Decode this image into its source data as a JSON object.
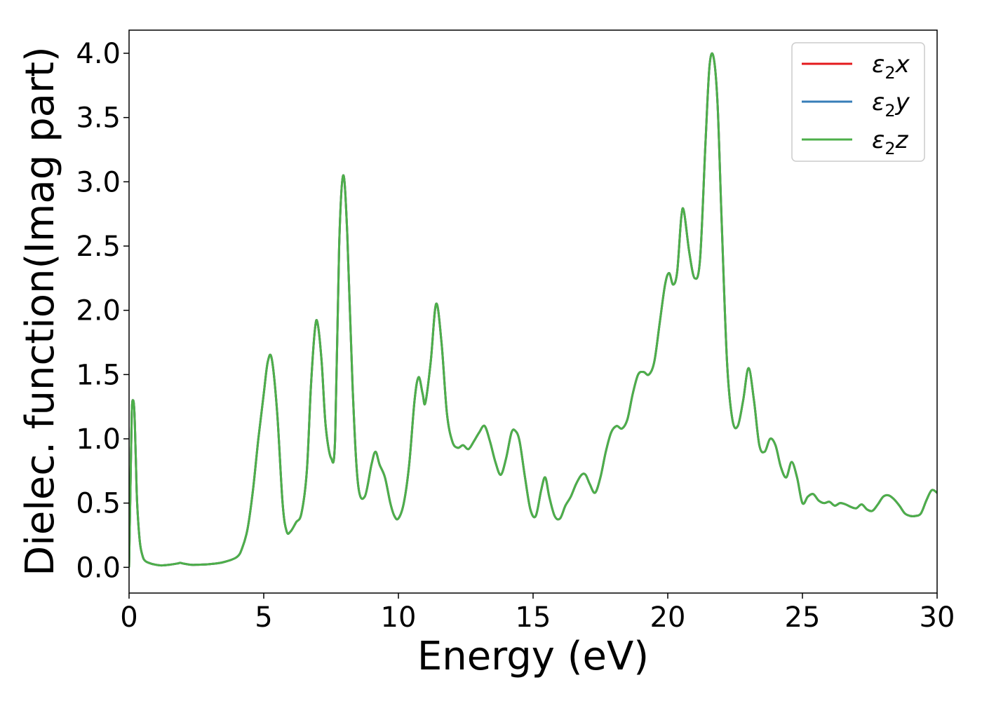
{
  "chart_data": {
    "type": "line",
    "xlabel": "Energy (eV)",
    "ylabel": "Dielec. function(Imag part)",
    "xlim": [
      0,
      30
    ],
    "ylim": [
      -0.2,
      4.18
    ],
    "xticks": [
      0,
      5,
      10,
      15,
      20,
      25,
      30
    ],
    "xtick_labels": [
      "0",
      "5",
      "10",
      "15",
      "20",
      "25",
      "30"
    ],
    "yticks": [
      0.0,
      0.5,
      1.0,
      1.5,
      2.0,
      2.5,
      3.0,
      3.5,
      4.0
    ],
    "ytick_labels": [
      "0.0",
      "0.5",
      "1.0",
      "1.5",
      "2.0",
      "2.5",
      "3.0",
      "3.5",
      "4.0"
    ],
    "grid": false,
    "legend_position": "top-right",
    "x": [
      0,
      0.05,
      0.1,
      0.15,
      0.2,
      0.25,
      0.3,
      0.4,
      0.5,
      0.6,
      0.8,
      1.0,
      1.2,
      1.5,
      1.8,
      1.9,
      2.0,
      2.3,
      2.5,
      3.0,
      3.5,
      4.0,
      4.2,
      4.4,
      4.6,
      4.8,
      5.0,
      5.15,
      5.3,
      5.5,
      5.7,
      5.85,
      6.0,
      6.2,
      6.4,
      6.6,
      6.75,
      6.9,
      7.0,
      7.15,
      7.3,
      7.5,
      7.65,
      7.8,
      7.95,
      8.1,
      8.3,
      8.5,
      8.75,
      9.0,
      9.15,
      9.3,
      9.5,
      9.7,
      9.85,
      10.0,
      10.2,
      10.4,
      10.6,
      10.75,
      10.9,
      11.0,
      11.2,
      11.4,
      11.6,
      11.8,
      12.0,
      12.2,
      12.4,
      12.6,
      12.8,
      13.0,
      13.2,
      13.4,
      13.6,
      13.8,
      14.0,
      14.2,
      14.35,
      14.5,
      14.7,
      14.9,
      15.1,
      15.3,
      15.45,
      15.6,
      15.8,
      16.0,
      16.2,
      16.4,
      16.6,
      16.8,
      16.95,
      17.1,
      17.3,
      17.5,
      17.7,
      17.9,
      18.1,
      18.3,
      18.5,
      18.7,
      18.9,
      19.1,
      19.3,
      19.5,
      19.7,
      19.9,
      20.05,
      20.2,
      20.35,
      20.5,
      20.6,
      20.8,
      21.0,
      21.2,
      21.4,
      21.55,
      21.7,
      21.85,
      22.0,
      22.2,
      22.4,
      22.6,
      22.8,
      23.0,
      23.2,
      23.4,
      23.6,
      23.8,
      24.0,
      24.2,
      24.4,
      24.6,
      24.8,
      25.0,
      25.2,
      25.4,
      25.6,
      25.8,
      26.0,
      26.2,
      26.4,
      26.6,
      26.8,
      27.0,
      27.2,
      27.4,
      27.6,
      27.8,
      28.0,
      28.2,
      28.4,
      28.6,
      28.8,
      29.0,
      29.2,
      29.4,
      29.6,
      29.8,
      30.0
    ],
    "series": [
      {
        "name": "ε2x",
        "color": "#e41a1c",
        "y": [
          0.0,
          0.6,
          1.2,
          1.3,
          1.2,
          0.85,
          0.5,
          0.2,
          0.09,
          0.05,
          0.03,
          0.02,
          0.015,
          0.02,
          0.03,
          0.035,
          0.03,
          0.02,
          0.02,
          0.025,
          0.04,
          0.08,
          0.15,
          0.3,
          0.6,
          1.0,
          1.35,
          1.6,
          1.62,
          1.2,
          0.5,
          0.28,
          0.28,
          0.35,
          0.42,
          0.75,
          1.4,
          1.85,
          1.9,
          1.6,
          1.1,
          0.85,
          1.0,
          2.5,
          3.05,
          2.6,
          1.4,
          0.65,
          0.55,
          0.8,
          0.9,
          0.8,
          0.7,
          0.5,
          0.4,
          0.38,
          0.5,
          0.8,
          1.3,
          1.48,
          1.35,
          1.28,
          1.6,
          2.05,
          1.75,
          1.2,
          0.98,
          0.93,
          0.95,
          0.92,
          0.98,
          1.05,
          1.1,
          0.98,
          0.82,
          0.72,
          0.85,
          1.05,
          1.06,
          0.98,
          0.7,
          0.45,
          0.4,
          0.6,
          0.7,
          0.55,
          0.4,
          0.38,
          0.48,
          0.55,
          0.65,
          0.72,
          0.72,
          0.65,
          0.58,
          0.7,
          0.9,
          1.05,
          1.1,
          1.08,
          1.15,
          1.35,
          1.5,
          1.52,
          1.5,
          1.6,
          1.9,
          2.2,
          2.29,
          2.2,
          2.3,
          2.72,
          2.77,
          2.45,
          2.25,
          2.4,
          3.3,
          3.9,
          3.97,
          3.6,
          2.7,
          1.6,
          1.15,
          1.1,
          1.3,
          1.55,
          1.3,
          0.95,
          0.9,
          1.0,
          0.95,
          0.78,
          0.7,
          0.82,
          0.7,
          0.5,
          0.55,
          0.57,
          0.52,
          0.5,
          0.51,
          0.48,
          0.5,
          0.49,
          0.47,
          0.46,
          0.49,
          0.45,
          0.44,
          0.49,
          0.55,
          0.56,
          0.53,
          0.48,
          0.42,
          0.4,
          0.4,
          0.42,
          0.52,
          0.6,
          0.58
        ]
      },
      {
        "name": "ε2y",
        "color": "#377eb8",
        "y": [
          0.0,
          0.6,
          1.2,
          1.3,
          1.2,
          0.85,
          0.5,
          0.2,
          0.09,
          0.05,
          0.03,
          0.02,
          0.015,
          0.02,
          0.03,
          0.035,
          0.03,
          0.02,
          0.02,
          0.025,
          0.04,
          0.08,
          0.15,
          0.3,
          0.6,
          1.0,
          1.35,
          1.6,
          1.62,
          1.2,
          0.5,
          0.28,
          0.28,
          0.35,
          0.42,
          0.75,
          1.4,
          1.85,
          1.9,
          1.6,
          1.1,
          0.85,
          1.0,
          2.5,
          3.05,
          2.6,
          1.4,
          0.65,
          0.55,
          0.8,
          0.9,
          0.8,
          0.7,
          0.5,
          0.4,
          0.38,
          0.5,
          0.8,
          1.3,
          1.48,
          1.35,
          1.28,
          1.6,
          2.05,
          1.75,
          1.2,
          0.98,
          0.93,
          0.95,
          0.92,
          0.98,
          1.05,
          1.1,
          0.98,
          0.82,
          0.72,
          0.85,
          1.05,
          1.06,
          0.98,
          0.7,
          0.45,
          0.4,
          0.6,
          0.7,
          0.55,
          0.4,
          0.38,
          0.48,
          0.55,
          0.65,
          0.72,
          0.72,
          0.65,
          0.58,
          0.7,
          0.9,
          1.05,
          1.1,
          1.08,
          1.15,
          1.35,
          1.5,
          1.52,
          1.5,
          1.6,
          1.9,
          2.2,
          2.29,
          2.2,
          2.3,
          2.72,
          2.77,
          2.45,
          2.25,
          2.4,
          3.3,
          3.9,
          3.97,
          3.6,
          2.7,
          1.6,
          1.15,
          1.1,
          1.3,
          1.55,
          1.3,
          0.95,
          0.9,
          1.0,
          0.95,
          0.78,
          0.7,
          0.82,
          0.7,
          0.5,
          0.55,
          0.57,
          0.52,
          0.5,
          0.51,
          0.48,
          0.5,
          0.49,
          0.47,
          0.46,
          0.49,
          0.45,
          0.44,
          0.49,
          0.55,
          0.56,
          0.53,
          0.48,
          0.42,
          0.4,
          0.4,
          0.42,
          0.52,
          0.6,
          0.58
        ]
      },
      {
        "name": "ε2z",
        "color": "#4daf4a",
        "y": [
          0.0,
          0.6,
          1.2,
          1.3,
          1.2,
          0.85,
          0.5,
          0.2,
          0.09,
          0.05,
          0.03,
          0.02,
          0.015,
          0.02,
          0.03,
          0.035,
          0.03,
          0.02,
          0.02,
          0.025,
          0.04,
          0.08,
          0.15,
          0.3,
          0.6,
          1.0,
          1.35,
          1.6,
          1.62,
          1.2,
          0.5,
          0.28,
          0.28,
          0.35,
          0.42,
          0.75,
          1.4,
          1.85,
          1.9,
          1.6,
          1.1,
          0.85,
          1.0,
          2.5,
          3.05,
          2.6,
          1.4,
          0.65,
          0.55,
          0.8,
          0.9,
          0.8,
          0.7,
          0.5,
          0.4,
          0.38,
          0.5,
          0.8,
          1.3,
          1.48,
          1.35,
          1.28,
          1.6,
          2.05,
          1.75,
          1.2,
          0.98,
          0.93,
          0.95,
          0.92,
          0.98,
          1.05,
          1.1,
          0.98,
          0.82,
          0.72,
          0.85,
          1.05,
          1.06,
          0.98,
          0.7,
          0.45,
          0.4,
          0.6,
          0.7,
          0.55,
          0.4,
          0.38,
          0.48,
          0.55,
          0.65,
          0.72,
          0.72,
          0.65,
          0.58,
          0.7,
          0.9,
          1.05,
          1.1,
          1.08,
          1.15,
          1.35,
          1.5,
          1.52,
          1.5,
          1.6,
          1.9,
          2.2,
          2.29,
          2.2,
          2.3,
          2.72,
          2.77,
          2.45,
          2.25,
          2.4,
          3.3,
          3.9,
          3.97,
          3.6,
          2.7,
          1.6,
          1.15,
          1.1,
          1.3,
          1.55,
          1.3,
          0.95,
          0.9,
          1.0,
          0.95,
          0.78,
          0.7,
          0.82,
          0.7,
          0.5,
          0.55,
          0.57,
          0.52,
          0.5,
          0.51,
          0.48,
          0.5,
          0.49,
          0.47,
          0.46,
          0.49,
          0.45,
          0.44,
          0.49,
          0.55,
          0.56,
          0.53,
          0.48,
          0.42,
          0.4,
          0.4,
          0.42,
          0.52,
          0.6,
          0.58
        ]
      }
    ]
  }
}
